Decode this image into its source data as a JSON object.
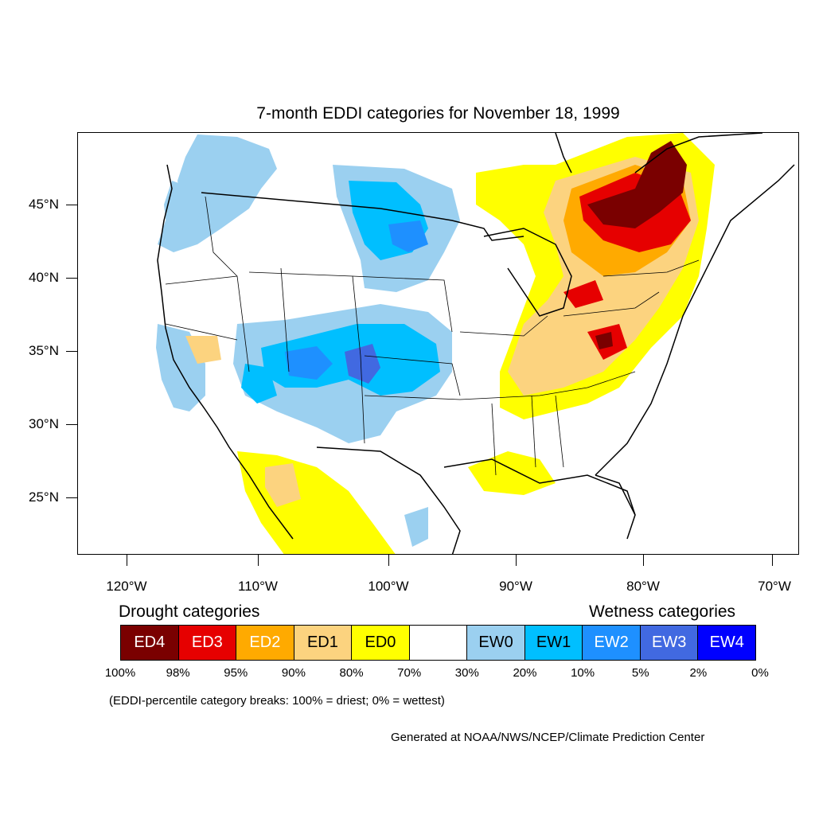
{
  "title": "7-month EDDI categories for November 18, 1999",
  "map": {
    "projection": "lat/lon",
    "lat_labels": [
      "45°N",
      "40°N",
      "35°N",
      "30°N",
      "25°N"
    ],
    "lon_labels": [
      "120°W",
      "110°W",
      "100°W",
      "90°W",
      "80°W",
      "70°W"
    ]
  },
  "legend": {
    "drought_heading": "Drought categories",
    "wetness_heading": "Wetness categories",
    "categories": [
      {
        "label": "ED4",
        "color": "#7a0000",
        "text_color": "#ffffff"
      },
      {
        "label": "ED3",
        "color": "#e60000",
        "text_color": "#ffffff"
      },
      {
        "label": "ED2",
        "color": "#ffaa00",
        "text_color": "#ffffff"
      },
      {
        "label": "ED1",
        "color": "#fcd37f",
        "text_color": "#000000"
      },
      {
        "label": "ED0",
        "color": "#ffff00",
        "text_color": "#000000"
      },
      {
        "label": "",
        "color": "#ffffff",
        "text_color": "#000000"
      },
      {
        "label": "EW0",
        "color": "#9bd0f0",
        "text_color": "#000000"
      },
      {
        "label": "EW1",
        "color": "#00bfff",
        "text_color": "#000000"
      },
      {
        "label": "EW2",
        "color": "#1e90ff",
        "text_color": "#ffffff"
      },
      {
        "label": "EW3",
        "color": "#4169e1",
        "text_color": "#ffffff"
      },
      {
        "label": "EW4",
        "color": "#0000ff",
        "text_color": "#ffffff"
      }
    ],
    "breaks": [
      "100%",
      "98%",
      "95%",
      "90%",
      "80%",
      "70%",
      "30%",
      "20%",
      "10%",
      "5%",
      "2%",
      "0%"
    ]
  },
  "note": "(EDDI-percentile category breaks: 100% = driest; 0% = wettest)",
  "credit": "Generated at NOAA/NWS/NCEP/Climate Prediction Center"
}
